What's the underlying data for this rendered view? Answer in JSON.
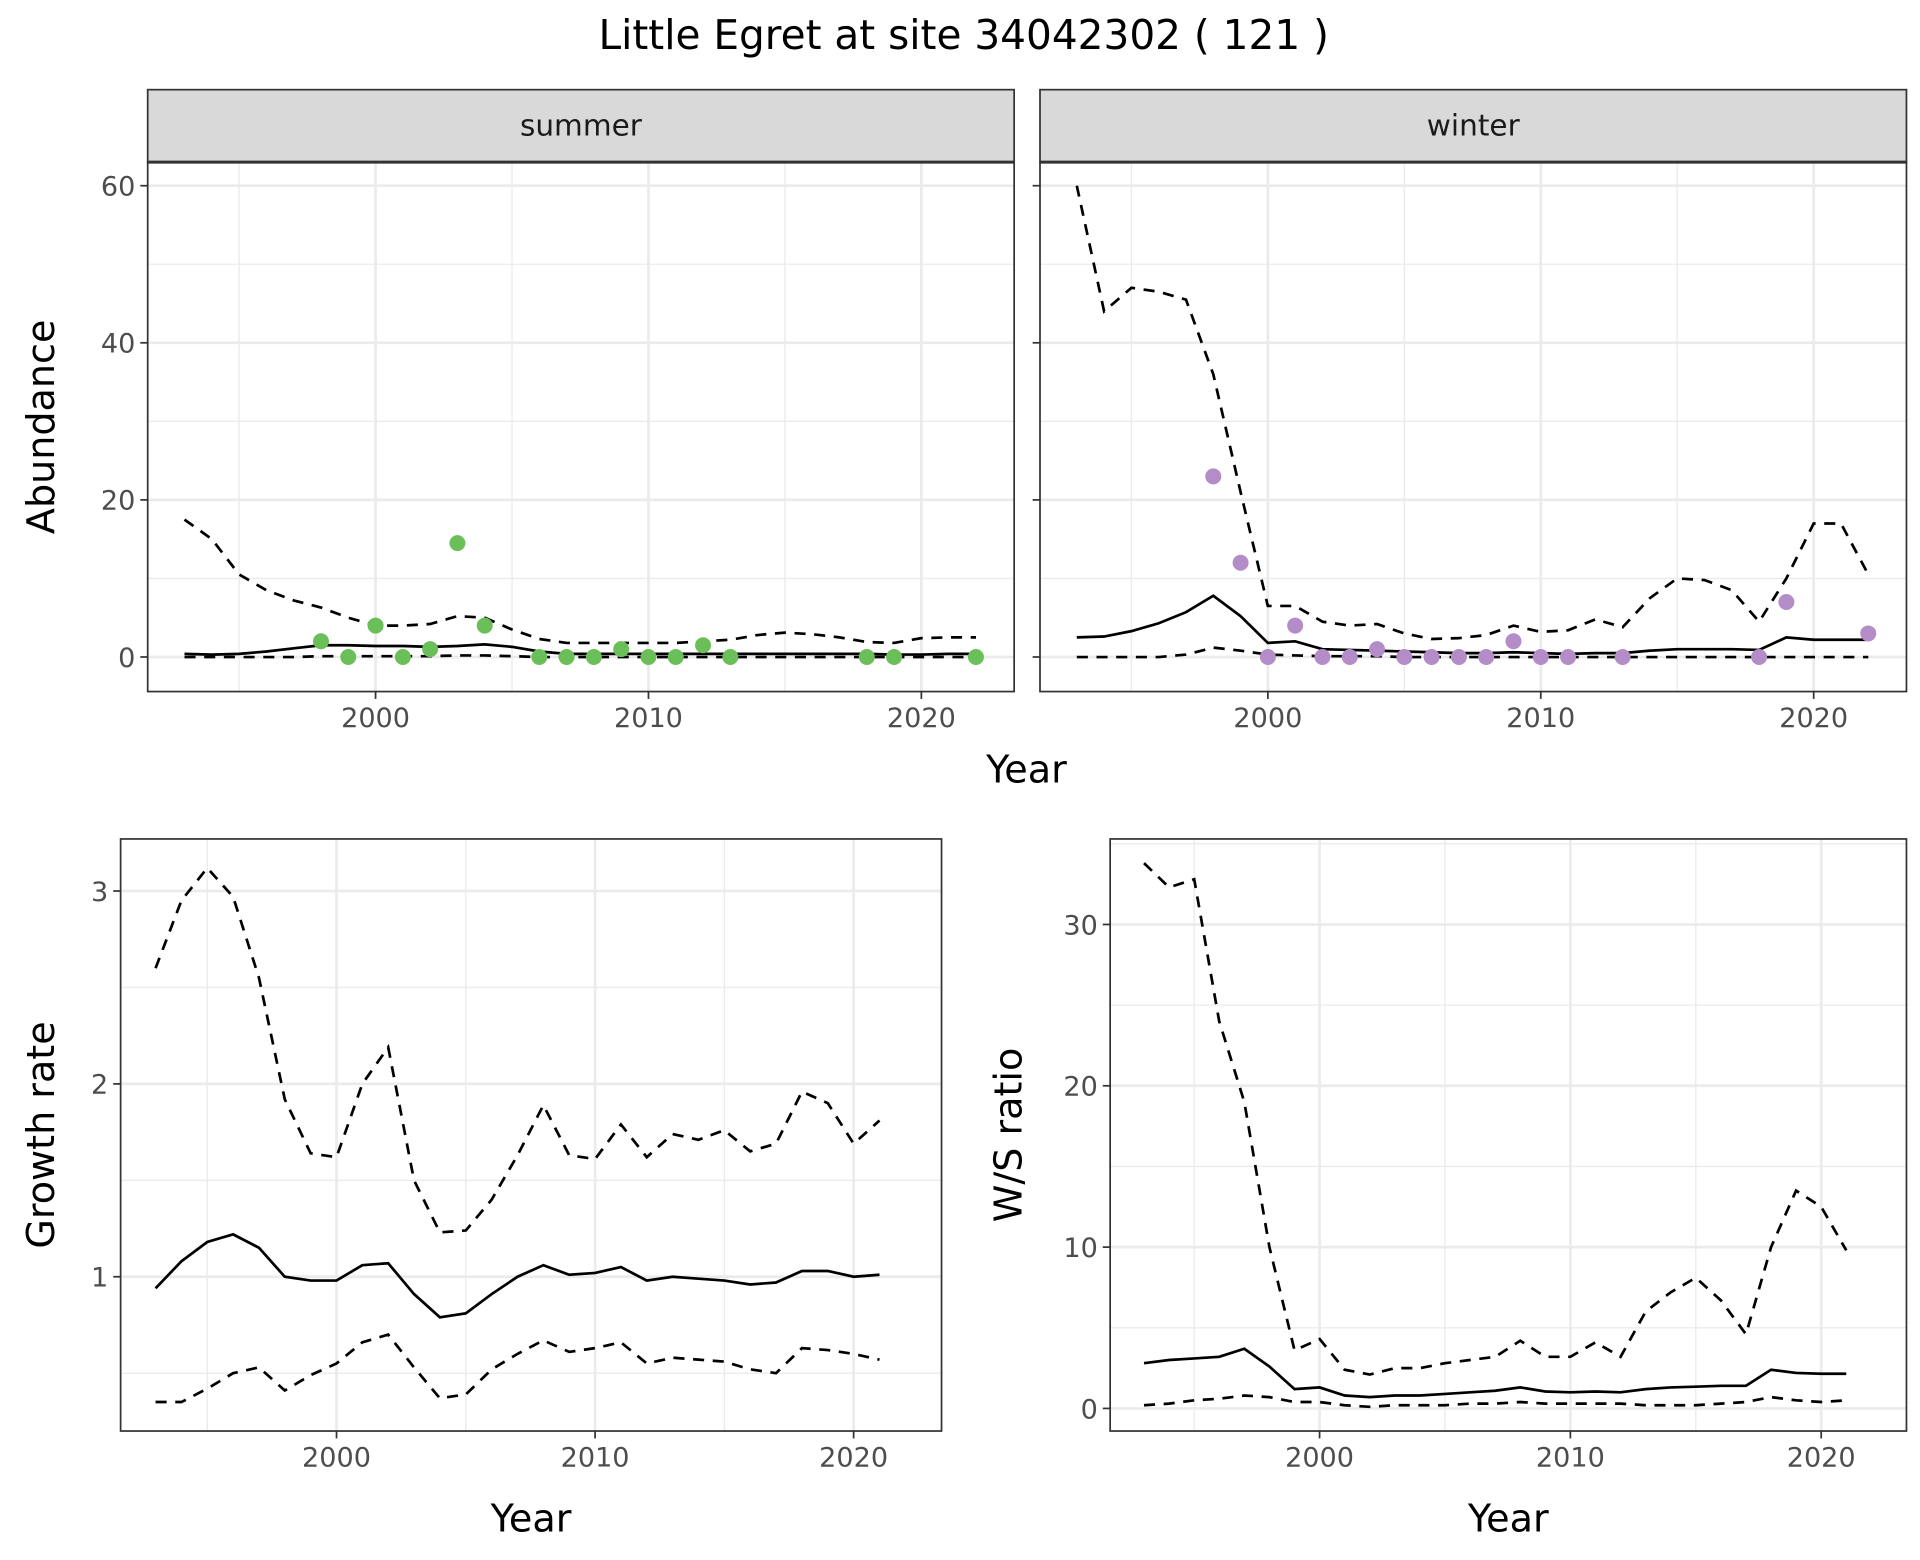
{
  "title": "Little Egret at site 34042302 ( 121 )",
  "colors": {
    "summer": "#6BBF59",
    "winter": "#B48CC8",
    "line": "#000000",
    "strip": "#D9D9D9"
  },
  "chart_data": [
    {
      "type": "line",
      "panel": "summer",
      "strip": "summer",
      "xlabel": "Year",
      "ylabel": "Abundance",
      "xlim": [
        1991.65,
        2023.4
      ],
      "ylim": [
        -4.4,
        63
      ],
      "xticks": [
        2000,
        2010,
        2020
      ],
      "yticks": [
        0,
        20,
        40,
        60
      ],
      "grid": true,
      "x": [
        1993,
        1994,
        1995,
        1996,
        1997,
        1998,
        1999,
        2000,
        2001,
        2002,
        2003,
        2004,
        2005,
        2006,
        2007,
        2008,
        2009,
        2010,
        2011,
        2012,
        2013,
        2014,
        2015,
        2016,
        2017,
        2018,
        2019,
        2020,
        2021,
        2022
      ],
      "series": [
        {
          "name": "upper",
          "style": "dashed",
          "values": [
            17.5,
            15,
            10.5,
            8.5,
            7.2,
            6.3,
            5,
            4,
            4,
            4.2,
            5.2,
            5,
            3.5,
            2.3,
            1.8,
            1.8,
            1.8,
            1.8,
            1.8,
            2,
            2.2,
            2.8,
            3.1,
            2.9,
            2.5,
            1.9,
            1.8,
            2.4,
            2.5,
            2.5
          ]
        },
        {
          "name": "mean",
          "style": "solid",
          "values": [
            0.4,
            0.3,
            0.4,
            0.7,
            1.1,
            1.5,
            1.5,
            1.4,
            1.4,
            1.3,
            1.4,
            1.6,
            1.3,
            0.7,
            0.4,
            0.4,
            0.4,
            0.4,
            0.4,
            0.4,
            0.4,
            0.4,
            0.4,
            0.4,
            0.4,
            0.4,
            0.3,
            0.3,
            0.4,
            0.4
          ]
        },
        {
          "name": "lower",
          "style": "dashed",
          "values": [
            0,
            0,
            0,
            0,
            0,
            0.1,
            0.1,
            0.1,
            0.1,
            0.1,
            0.2,
            0.2,
            0.1,
            0,
            0,
            0,
            0,
            0,
            0,
            0,
            0,
            0,
            0,
            0,
            0,
            0,
            0,
            0,
            0,
            0
          ]
        }
      ],
      "points": {
        "x": [
          1998,
          1999,
          2000,
          2001,
          2002,
          2003,
          2004,
          2006,
          2007,
          2008,
          2009,
          2010,
          2011,
          2012,
          2013,
          2018,
          2019,
          2022
        ],
        "y": [
          2,
          0,
          4,
          0,
          1,
          14.5,
          4,
          0,
          0,
          0,
          1,
          0,
          0,
          1.5,
          0,
          0,
          0,
          0
        ]
      }
    },
    {
      "type": "line",
      "panel": "winter",
      "strip": "winter",
      "xlabel": "Year",
      "ylabel": "Abundance",
      "xlim": [
        1991.65,
        2023.4
      ],
      "ylim": [
        -4.4,
        63
      ],
      "xticks": [
        2000,
        2010,
        2020
      ],
      "yticks": [
        0,
        20,
        40,
        60
      ],
      "grid": true,
      "x": [
        1993,
        1994,
        1995,
        1996,
        1997,
        1998,
        1999,
        2000,
        2001,
        2002,
        2003,
        2004,
        2005,
        2006,
        2007,
        2008,
        2009,
        2010,
        2011,
        2012,
        2013,
        2014,
        2015,
        2016,
        2017,
        2018,
        2019,
        2020,
        2021,
        2022
      ],
      "series": [
        {
          "name": "upper",
          "style": "dashed",
          "values": [
            60,
            44,
            47,
            46.5,
            45.5,
            36,
            21,
            6.5,
            6.5,
            4.5,
            4,
            4.2,
            3,
            2.3,
            2.4,
            2.8,
            4,
            3.2,
            3.4,
            4.8,
            3.8,
            7.5,
            10,
            9.8,
            8.5,
            4.5,
            10,
            17,
            17,
            10.5
          ]
        },
        {
          "name": "mean",
          "style": "solid",
          "values": [
            2.5,
            2.6,
            3.3,
            4.3,
            5.7,
            7.8,
            5.2,
            1.8,
            2,
            1,
            0.9,
            0.8,
            0.7,
            0.6,
            0.5,
            0.5,
            0.6,
            0.5,
            0.4,
            0.5,
            0.5,
            0.8,
            1,
            1,
            1,
            0.9,
            2.5,
            2.2,
            2.2,
            2.2
          ]
        },
        {
          "name": "lower",
          "style": "dashed",
          "values": [
            0,
            0,
            0,
            0,
            0.3,
            1.2,
            0.8,
            0.3,
            0.2,
            0.1,
            0.1,
            0.1,
            0,
            0,
            0,
            0,
            0,
            0,
            0,
            0,
            0,
            0,
            0,
            0,
            0,
            0,
            0,
            0,
            0,
            0
          ]
        }
      ],
      "points": {
        "x": [
          1998,
          1999,
          2000,
          2001,
          2002,
          2003,
          2004,
          2005,
          2006,
          2007,
          2008,
          2009,
          2010,
          2011,
          2013,
          2018,
          2019,
          2022
        ],
        "y": [
          23,
          12,
          0,
          4,
          0,
          0,
          1,
          0,
          0,
          0,
          0,
          2,
          0,
          0,
          0,
          0,
          7,
          3
        ]
      }
    },
    {
      "type": "line",
      "panel": "growth",
      "xlabel": "Year",
      "ylabel": "Growth rate",
      "xlim": [
        1991.65,
        2023.4
      ],
      "ylim": [
        0.2,
        3.27
      ],
      "xticks": [
        2000,
        2010,
        2020
      ],
      "yticks": [
        1,
        2,
        3
      ],
      "grid": true,
      "x": [
        1993,
        1994,
        1995,
        1996,
        1997,
        1998,
        1999,
        2000,
        2001,
        2002,
        2003,
        2004,
        2005,
        2006,
        2007,
        2008,
        2009,
        2010,
        2011,
        2012,
        2013,
        2014,
        2015,
        2016,
        2017,
        2018,
        2019,
        2020,
        2021
      ],
      "series": [
        {
          "name": "upper",
          "style": "dashed",
          "values": [
            2.6,
            2.95,
            3.12,
            2.97,
            2.55,
            1.92,
            1.64,
            1.62,
            2.0,
            2.19,
            1.5,
            1.23,
            1.24,
            1.4,
            1.63,
            1.89,
            1.63,
            1.61,
            1.79,
            1.62,
            1.74,
            1.71,
            1.76,
            1.65,
            1.69,
            1.96,
            1.9,
            1.69,
            1.81
          ]
        },
        {
          "name": "mean",
          "style": "solid",
          "values": [
            0.94,
            1.08,
            1.18,
            1.22,
            1.15,
            1.0,
            0.98,
            0.98,
            1.06,
            1.07,
            0.91,
            0.79,
            0.81,
            0.91,
            1.0,
            1.06,
            1.01,
            1.02,
            1.05,
            0.98,
            1.0,
            0.99,
            0.98,
            0.96,
            0.97,
            1.03,
            1.03,
            1.0,
            1.01
          ]
        },
        {
          "name": "lower",
          "style": "dashed",
          "values": [
            0.35,
            0.35,
            0.42,
            0.5,
            0.53,
            0.41,
            0.49,
            0.55,
            0.66,
            0.7,
            0.53,
            0.37,
            0.39,
            0.52,
            0.6,
            0.67,
            0.61,
            0.63,
            0.66,
            0.55,
            0.58,
            0.57,
            0.56,
            0.52,
            0.5,
            0.63,
            0.62,
            0.6,
            0.57
          ]
        }
      ]
    },
    {
      "type": "line",
      "panel": "ratio",
      "xlabel": "Year",
      "ylabel": "W/S ratio",
      "xlim": [
        1991.65,
        2023.4
      ],
      "ylim": [
        -1.4,
        35.3
      ],
      "xticks": [
        2000,
        2010,
        2020
      ],
      "yticks": [
        0,
        10,
        20,
        30
      ],
      "grid": true,
      "x": [
        1993,
        1994,
        1995,
        1996,
        1997,
        1998,
        1999,
        2000,
        2001,
        2002,
        2003,
        2004,
        2005,
        2006,
        2007,
        2008,
        2009,
        2010,
        2011,
        2012,
        2013,
        2014,
        2015,
        2016,
        2017,
        2018,
        2019,
        2020,
        2021
      ],
      "series": [
        {
          "name": "upper",
          "style": "dashed",
          "values": [
            33.8,
            32.3,
            32.8,
            24,
            19,
            10,
            3.6,
            4.3,
            2.4,
            2.1,
            2.5,
            2.5,
            2.8,
            3.0,
            3.2,
            4.2,
            3.2,
            3.2,
            4.1,
            3.2,
            6,
            7.2,
            8.1,
            6.7,
            4.6,
            10,
            13.5,
            12.5,
            9.8
          ]
        },
        {
          "name": "mean",
          "style": "solid",
          "values": [
            2.8,
            3.0,
            3.1,
            3.2,
            3.7,
            2.6,
            1.2,
            1.3,
            0.8,
            0.7,
            0.8,
            0.8,
            0.9,
            1.0,
            1.1,
            1.3,
            1.05,
            1.0,
            1.05,
            1.0,
            1.2,
            1.3,
            1.35,
            1.4,
            1.4,
            2.4,
            2.2,
            2.15,
            2.15
          ]
        },
        {
          "name": "lower",
          "style": "dashed",
          "values": [
            0.2,
            0.3,
            0.5,
            0.6,
            0.8,
            0.7,
            0.4,
            0.4,
            0.2,
            0.1,
            0.2,
            0.2,
            0.2,
            0.3,
            0.3,
            0.4,
            0.3,
            0.3,
            0.3,
            0.3,
            0.2,
            0.2,
            0.2,
            0.3,
            0.4,
            0.7,
            0.5,
            0.4,
            0.5
          ]
        }
      ]
    }
  ]
}
